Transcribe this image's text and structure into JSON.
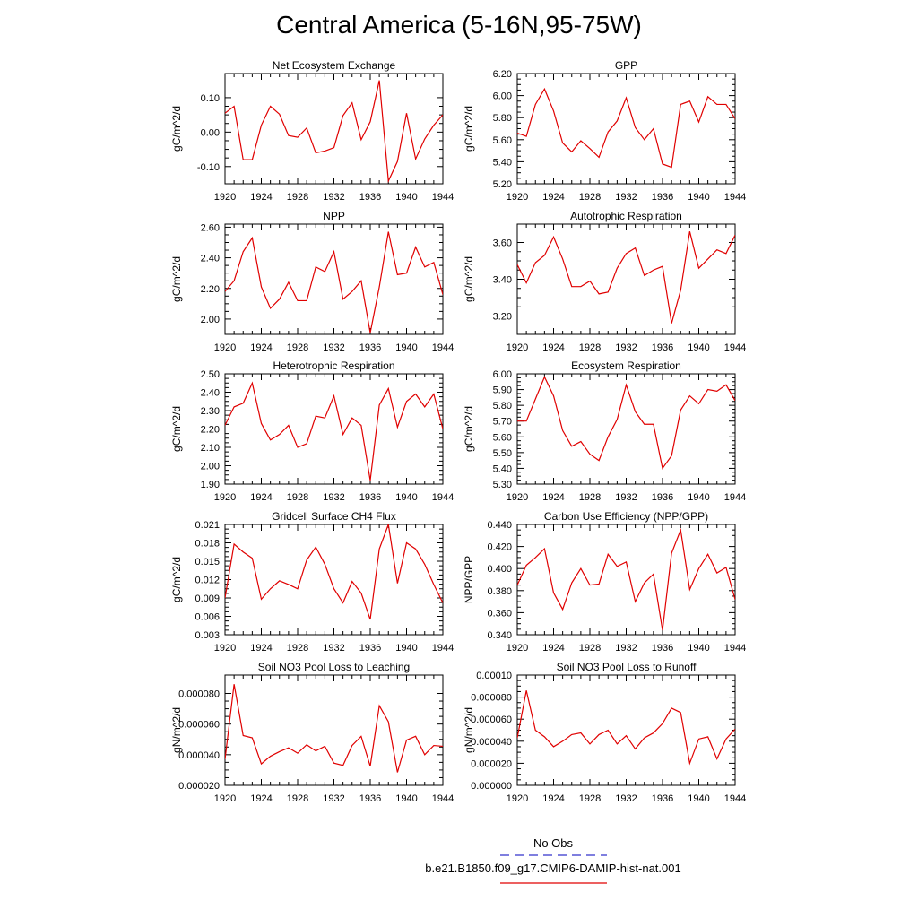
{
  "title": "Central America (5-16N,95-75W)",
  "legend": {
    "entries": [
      {
        "label": "No Obs",
        "color": "#3333cc",
        "style": "dashed"
      },
      {
        "label": "b.e21.B1850.f09_g17.CMIP6-DAMIP-hist-nat.001",
        "color": "#e00000",
        "style": "solid"
      }
    ]
  },
  "chart_data": [
    {
      "type": "line",
      "title": "Net Ecosystem Exchange",
      "ylabel": "gC/m^2/d",
      "xlim": [
        1920,
        1944
      ],
      "ylim": [
        -0.15,
        0.17
      ],
      "xticks": [
        "1920",
        "1924",
        "1928",
        "1932",
        "1936",
        "1940",
        "1944"
      ],
      "yticks": [
        {
          "v": -0.1,
          "label": "-0.10"
        },
        {
          "v": 0.0,
          "label": "0.00"
        },
        {
          "v": 0.1,
          "label": "0.10"
        }
      ],
      "x": [
        1920,
        1921,
        1922,
        1923,
        1924,
        1925,
        1926,
        1927,
        1928,
        1929,
        1930,
        1931,
        1932,
        1933,
        1934,
        1935,
        1936,
        1937,
        1938,
        1939,
        1940,
        1941,
        1942,
        1943,
        1944
      ],
      "series": [
        {
          "values": [
            0.055,
            0.075,
            -0.08,
            -0.08,
            0.02,
            0.075,
            0.052,
            -0.01,
            -0.015,
            0.012,
            -0.06,
            -0.055,
            -0.045,
            0.048,
            0.085,
            -0.022,
            0.03,
            0.15,
            -0.142,
            -0.085,
            0.055,
            -0.078,
            -0.02,
            0.02,
            0.05
          ],
          "color": "#e00000"
        }
      ]
    },
    {
      "type": "line",
      "title": "GPP",
      "ylabel": "gC/m^2/d",
      "xlim": [
        1920,
        1944
      ],
      "ylim": [
        5.2,
        6.2
      ],
      "xticks": [
        "1920",
        "1924",
        "1928",
        "1932",
        "1936",
        "1940",
        "1944"
      ],
      "yticks": [
        {
          "v": 5.2,
          "label": "5.20"
        },
        {
          "v": 5.4,
          "label": "5.40"
        },
        {
          "v": 5.6,
          "label": "5.60"
        },
        {
          "v": 5.8,
          "label": "5.80"
        },
        {
          "v": 6.0,
          "label": "6.00"
        },
        {
          "v": 6.2,
          "label": "6.20"
        }
      ],
      "x": [
        1920,
        1921,
        1922,
        1923,
        1924,
        1925,
        1926,
        1927,
        1928,
        1929,
        1930,
        1931,
        1932,
        1933,
        1934,
        1935,
        1936,
        1937,
        1938,
        1939,
        1940,
        1941,
        1942,
        1943,
        1944
      ],
      "series": [
        {
          "values": [
            5.66,
            5.63,
            5.92,
            6.06,
            5.86,
            5.57,
            5.49,
            5.59,
            5.52,
            5.44,
            5.67,
            5.77,
            5.98,
            5.71,
            5.6,
            5.7,
            5.38,
            5.35,
            5.92,
            5.95,
            5.76,
            5.99,
            5.92,
            5.92,
            5.79
          ],
          "color": "#e00000"
        }
      ]
    },
    {
      "type": "line",
      "title": "NPP",
      "ylabel": "gC/m^2/d",
      "xlim": [
        1920,
        1944
      ],
      "ylim": [
        1.9,
        2.62
      ],
      "xticks": [
        "1920",
        "1924",
        "1928",
        "1932",
        "1936",
        "1940",
        "1944"
      ],
      "yticks": [
        {
          "v": 2.0,
          "label": "2.00"
        },
        {
          "v": 2.2,
          "label": "2.20"
        },
        {
          "v": 2.4,
          "label": "2.40"
        },
        {
          "v": 2.6,
          "label": "2.60"
        }
      ],
      "x": [
        1920,
        1921,
        1922,
        1923,
        1924,
        1925,
        1926,
        1927,
        1928,
        1929,
        1930,
        1931,
        1932,
        1933,
        1934,
        1935,
        1936,
        1937,
        1938,
        1939,
        1940,
        1941,
        1942,
        1943,
        1944
      ],
      "series": [
        {
          "values": [
            2.18,
            2.25,
            2.44,
            2.53,
            2.21,
            2.07,
            2.13,
            2.24,
            2.12,
            2.12,
            2.34,
            2.31,
            2.44,
            2.13,
            2.18,
            2.25,
            1.91,
            2.21,
            2.57,
            2.29,
            2.3,
            2.47,
            2.34,
            2.37,
            2.16
          ],
          "color": "#e00000"
        }
      ]
    },
    {
      "type": "line",
      "title": "Autotrophic Respiration",
      "ylabel": "gC/m^2/d",
      "xlim": [
        1920,
        1944
      ],
      "ylim": [
        3.1,
        3.7
      ],
      "xticks": [
        "1920",
        "1924",
        "1928",
        "1932",
        "1936",
        "1940",
        "1944"
      ],
      "yticks": [
        {
          "v": 3.2,
          "label": "3.20"
        },
        {
          "v": 3.4,
          "label": "3.40"
        },
        {
          "v": 3.6,
          "label": "3.60"
        }
      ],
      "x": [
        1920,
        1921,
        1922,
        1923,
        1924,
        1925,
        1926,
        1927,
        1928,
        1929,
        1930,
        1931,
        1932,
        1933,
        1934,
        1935,
        1936,
        1937,
        1938,
        1939,
        1940,
        1941,
        1942,
        1943,
        1944
      ],
      "series": [
        {
          "values": [
            3.48,
            3.38,
            3.49,
            3.53,
            3.63,
            3.51,
            3.36,
            3.36,
            3.39,
            3.32,
            3.33,
            3.46,
            3.54,
            3.57,
            3.42,
            3.45,
            3.47,
            3.16,
            3.34,
            3.66,
            3.46,
            3.51,
            3.56,
            3.54,
            3.64
          ],
          "color": "#e00000"
        }
      ]
    },
    {
      "type": "line",
      "title": "Heterotrophic Respiration",
      "ylabel": "gC/m^2/d",
      "xlim": [
        1920,
        1944
      ],
      "ylim": [
        1.9,
        2.5
      ],
      "xticks": [
        "1920",
        "1924",
        "1928",
        "1932",
        "1936",
        "1940",
        "1944"
      ],
      "yticks": [
        {
          "v": 1.9,
          "label": "1.90"
        },
        {
          "v": 2.0,
          "label": "2.00"
        },
        {
          "v": 2.1,
          "label": "2.10"
        },
        {
          "v": 2.2,
          "label": "2.20"
        },
        {
          "v": 2.3,
          "label": "2.30"
        },
        {
          "v": 2.4,
          "label": "2.40"
        },
        {
          "v": 2.5,
          "label": "2.50"
        }
      ],
      "x": [
        1920,
        1921,
        1922,
        1923,
        1924,
        1925,
        1926,
        1927,
        1928,
        1929,
        1930,
        1931,
        1932,
        1933,
        1934,
        1935,
        1936,
        1937,
        1938,
        1939,
        1940,
        1941,
        1942,
        1943,
        1944
      ],
      "series": [
        {
          "values": [
            2.22,
            2.32,
            2.34,
            2.45,
            2.23,
            2.14,
            2.17,
            2.22,
            2.1,
            2.12,
            2.27,
            2.26,
            2.38,
            2.17,
            2.26,
            2.22,
            1.92,
            2.33,
            2.42,
            2.21,
            2.35,
            2.39,
            2.32,
            2.39,
            2.2
          ],
          "color": "#e00000"
        }
      ]
    },
    {
      "type": "line",
      "title": "Ecosystem Respiration",
      "ylabel": "gC/m^2/d",
      "xlim": [
        1920,
        1944
      ],
      "ylim": [
        5.3,
        6.0
      ],
      "xticks": [
        "1920",
        "1924",
        "1928",
        "1932",
        "1936",
        "1940",
        "1944"
      ],
      "yticks": [
        {
          "v": 5.3,
          "label": "5.30"
        },
        {
          "v": 5.4,
          "label": "5.40"
        },
        {
          "v": 5.5,
          "label": "5.50"
        },
        {
          "v": 5.6,
          "label": "5.60"
        },
        {
          "v": 5.7,
          "label": "5.70"
        },
        {
          "v": 5.8,
          "label": "5.80"
        },
        {
          "v": 5.9,
          "label": "5.90"
        },
        {
          "v": 6.0,
          "label": "6.00"
        }
      ],
      "x": [
        1920,
        1921,
        1922,
        1923,
        1924,
        1925,
        1926,
        1927,
        1928,
        1929,
        1930,
        1931,
        1932,
        1933,
        1934,
        1935,
        1936,
        1937,
        1938,
        1939,
        1940,
        1941,
        1942,
        1943,
        1944
      ],
      "series": [
        {
          "values": [
            5.7,
            5.7,
            5.84,
            5.98,
            5.86,
            5.64,
            5.54,
            5.57,
            5.49,
            5.45,
            5.6,
            5.71,
            5.93,
            5.76,
            5.68,
            5.68,
            5.4,
            5.48,
            5.77,
            5.86,
            5.81,
            5.9,
            5.89,
            5.93,
            5.83
          ],
          "color": "#e00000"
        }
      ]
    },
    {
      "type": "line",
      "title": "Gridcell Surface CH4 Flux",
      "ylabel": "gC/m^2/d",
      "xlim": [
        1920,
        1944
      ],
      "ylim": [
        0.003,
        0.021
      ],
      "xticks": [
        "1920",
        "1924",
        "1928",
        "1932",
        "1936",
        "1940",
        "1944"
      ],
      "yticks": [
        {
          "v": 0.003,
          "label": "0.003"
        },
        {
          "v": 0.006,
          "label": "0.006"
        },
        {
          "v": 0.009,
          "label": "0.009"
        },
        {
          "v": 0.012,
          "label": "0.012"
        },
        {
          "v": 0.015,
          "label": "0.015"
        },
        {
          "v": 0.018,
          "label": "0.018"
        },
        {
          "v": 0.021,
          "label": "0.021"
        }
      ],
      "x": [
        1920,
        1921,
        1922,
        1923,
        1924,
        1925,
        1926,
        1927,
        1928,
        1929,
        1930,
        1931,
        1932,
        1933,
        1934,
        1935,
        1936,
        1937,
        1938,
        1939,
        1940,
        1941,
        1942,
        1943,
        1944
      ],
      "series": [
        {
          "values": [
            0.009,
            0.0178,
            0.0165,
            0.0155,
            0.0088,
            0.0105,
            0.0118,
            0.0112,
            0.0105,
            0.0152,
            0.0173,
            0.0145,
            0.0105,
            0.0082,
            0.0117,
            0.0098,
            0.0055,
            0.017,
            0.021,
            0.0114,
            0.018,
            0.017,
            0.0145,
            0.0112,
            0.0082
          ],
          "color": "#e00000"
        }
      ]
    },
    {
      "type": "line",
      "title": "Carbon Use Efficiency (NPP/GPP)",
      "ylabel": "NPP/GPP",
      "xlim": [
        1920,
        1944
      ],
      "ylim": [
        0.34,
        0.44
      ],
      "xticks": [
        "1920",
        "1924",
        "1928",
        "1932",
        "1936",
        "1940",
        "1944"
      ],
      "yticks": [
        {
          "v": 0.34,
          "label": "0.340"
        },
        {
          "v": 0.36,
          "label": "0.360"
        },
        {
          "v": 0.38,
          "label": "0.380"
        },
        {
          "v": 0.4,
          "label": "0.400"
        },
        {
          "v": 0.42,
          "label": "0.420"
        },
        {
          "v": 0.44,
          "label": "0.440"
        }
      ],
      "x": [
        1920,
        1921,
        1922,
        1923,
        1924,
        1925,
        1926,
        1927,
        1928,
        1929,
        1930,
        1931,
        1932,
        1933,
        1934,
        1935,
        1936,
        1937,
        1938,
        1939,
        1940,
        1941,
        1942,
        1943,
        1944
      ],
      "series": [
        {
          "values": [
            0.385,
            0.403,
            0.41,
            0.418,
            0.378,
            0.363,
            0.387,
            0.4,
            0.385,
            0.386,
            0.413,
            0.402,
            0.406,
            0.37,
            0.387,
            0.395,
            0.344,
            0.414,
            0.435,
            0.381,
            0.4,
            0.413,
            0.396,
            0.401,
            0.372
          ],
          "color": "#e00000"
        }
      ]
    },
    {
      "type": "line",
      "title": "Soil NO3 Pool Loss to Leaching",
      "ylabel": "gN/m^2/d",
      "xlim": [
        1920,
        1944
      ],
      "ylim": [
        2e-05,
        9.2e-05
      ],
      "xticks": [
        "1920",
        "1924",
        "1928",
        "1932",
        "1936",
        "1940",
        "1944"
      ],
      "yticks": [
        {
          "v": 2e-05,
          "label": "0.000020"
        },
        {
          "v": 4e-05,
          "label": "0.000040"
        },
        {
          "v": 6e-05,
          "label": "0.000060"
        },
        {
          "v": 8e-05,
          "label": "0.000080"
        }
      ],
      "x": [
        1920,
        1921,
        1922,
        1923,
        1924,
        1925,
        1926,
        1927,
        1928,
        1929,
        1930,
        1931,
        1932,
        1933,
        1934,
        1935,
        1936,
        1937,
        1938,
        1939,
        1940,
        1941,
        1942,
        1943,
        1944
      ],
      "series": [
        {
          "values": [
            3.7e-05,
            8.6e-05,
            5.25e-05,
            5.1e-05,
            3.4e-05,
            3.9e-05,
            4.2e-05,
            4.45e-05,
            4.1e-05,
            4.65e-05,
            4.25e-05,
            4.55e-05,
            3.45e-05,
            3.3e-05,
            4.6e-05,
            5.2e-05,
            3.25e-05,
            7.2e-05,
            6.15e-05,
            2.85e-05,
            4.95e-05,
            5.2e-05,
            4e-05,
            4.6e-05,
            4.55e-05
          ],
          "color": "#e00000"
        }
      ]
    },
    {
      "type": "line",
      "title": "Soil NO3 Pool Loss to Runoff",
      "ylabel": "gN/m^2/d",
      "xlim": [
        1920,
        1944
      ],
      "ylim": [
        0.0,
        0.0001
      ],
      "xticks": [
        "1920",
        "1924",
        "1928",
        "1932",
        "1936",
        "1940",
        "1944"
      ],
      "yticks": [
        {
          "v": 0.0,
          "label": "0.000000"
        },
        {
          "v": 2e-05,
          "label": "0.000020"
        },
        {
          "v": 4e-05,
          "label": "0.000040"
        },
        {
          "v": 6e-05,
          "label": "0.000060"
        },
        {
          "v": 8e-05,
          "label": "0.000080"
        },
        {
          "v": 0.0001,
          "label": "0.00010"
        }
      ],
      "x": [
        1920,
        1921,
        1922,
        1923,
        1924,
        1925,
        1926,
        1927,
        1928,
        1929,
        1930,
        1931,
        1932,
        1933,
        1934,
        1935,
        1936,
        1937,
        1938,
        1939,
        1940,
        1941,
        1942,
        1943,
        1944
      ],
      "series": [
        {
          "values": [
            4.3e-05,
            8.6e-05,
            5e-05,
            4.4e-05,
            3.5e-05,
            4e-05,
            4.6e-05,
            4.75e-05,
            3.75e-05,
            4.6e-05,
            5e-05,
            3.75e-05,
            4.5e-05,
            3.3e-05,
            4.3e-05,
            4.75e-05,
            5.6e-05,
            7e-05,
            6.6e-05,
            2e-05,
            4.2e-05,
            4.4e-05,
            2.4e-05,
            4.2e-05,
            5.1e-05
          ],
          "color": "#e00000"
        }
      ]
    }
  ]
}
